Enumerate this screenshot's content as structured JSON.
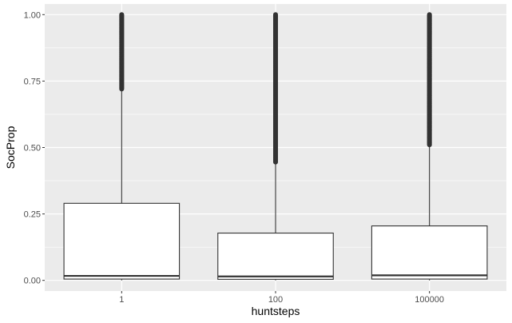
{
  "chart_data": {
    "type": "boxplot",
    "xlabel": "huntsteps",
    "ylabel": "SocProp",
    "categories": [
      "1",
      "100",
      "100000"
    ],
    "ylim": [
      -0.04,
      1.04
    ],
    "yticks": [
      0.0,
      0.25,
      0.5,
      0.75,
      1.0
    ],
    "ytick_labels": [
      "0.00",
      "0.25",
      "0.50",
      "0.75",
      "1.00"
    ],
    "grid": true,
    "legend": "none",
    "boxes": [
      {
        "category": "1",
        "min": 0.0,
        "q1": 0.005,
        "median": 0.017,
        "q3": 0.29,
        "whisker_high": 0.72,
        "outliers_from": 0.72,
        "outliers_to": 1.0
      },
      {
        "category": "100",
        "min": 0.0,
        "q1": 0.004,
        "median": 0.015,
        "q3": 0.178,
        "whisker_high": 0.445,
        "outliers_from": 0.445,
        "outliers_to": 1.0
      },
      {
        "category": "100000",
        "min": 0.0,
        "q1": 0.005,
        "median": 0.019,
        "q3": 0.205,
        "whisker_high": 0.51,
        "outliers_from": 0.51,
        "outliers_to": 1.0
      }
    ],
    "colors": {
      "panel": "#ebebeb",
      "grid": "#ffffff",
      "box_fill": "#ffffff",
      "line": "#333333",
      "point": "#333333"
    }
  }
}
